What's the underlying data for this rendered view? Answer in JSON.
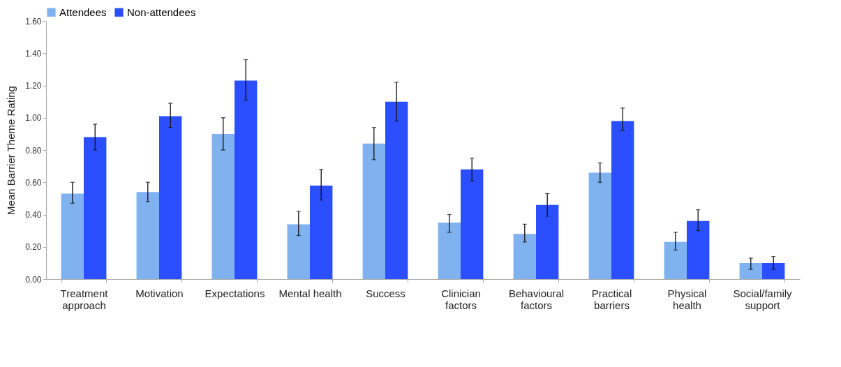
{
  "chart_data": {
    "type": "bar",
    "ylabel": "Mean Barrier Theme Rating",
    "categories": [
      "Treatment approach",
      "Motivation",
      "Expectations",
      "Mental health",
      "Success",
      "Clinician factors",
      "Behavioural factors",
      "Practical barriers",
      "Physical health",
      "Social/family support"
    ],
    "series": [
      {
        "name": "Attendees",
        "color": "#7fb2ee",
        "values": [
          0.53,
          0.54,
          0.9,
          0.34,
          0.84,
          0.35,
          0.28,
          0.66,
          0.23,
          0.1
        ],
        "errors": [
          [
            0.47,
            0.6
          ],
          [
            0.48,
            0.6
          ],
          [
            0.8,
            1.0
          ],
          [
            0.27,
            0.42
          ],
          [
            0.74,
            0.94
          ],
          [
            0.29,
            0.4
          ],
          [
            0.23,
            0.34
          ],
          [
            0.6,
            0.72
          ],
          [
            0.18,
            0.29
          ],
          [
            0.06,
            0.13
          ]
        ]
      },
      {
        "name": "Non-attendees",
        "color": "#2b4fff",
        "values": [
          0.88,
          1.01,
          1.23,
          0.58,
          1.1,
          0.68,
          0.46,
          0.98,
          0.36,
          0.1
        ],
        "errors": [
          [
            0.8,
            0.96
          ],
          [
            0.94,
            1.09
          ],
          [
            1.11,
            1.36
          ],
          [
            0.49,
            0.68
          ],
          [
            0.98,
            1.22
          ],
          [
            0.61,
            0.75
          ],
          [
            0.39,
            0.53
          ],
          [
            0.92,
            1.06
          ],
          [
            0.3,
            0.43
          ],
          [
            0.06,
            0.14
          ]
        ]
      }
    ],
    "ylim": [
      0,
      1.6
    ],
    "yticks": [
      {
        "value": 0,
        "label": "0.00"
      },
      {
        "value": 0.2,
        "label": "0.20"
      },
      {
        "value": 0.4,
        "label": "0.40"
      },
      {
        "value": 0.6,
        "label": "0.60"
      },
      {
        "value": 0.8,
        "label": "0.80"
      },
      {
        "value": 1.0,
        "label": "1.00"
      },
      {
        "value": 1.2,
        "label": "1.20"
      },
      {
        "value": 1.4,
        "label": "1.40"
      },
      {
        "value": 1.6,
        "label": "1.60"
      }
    ],
    "legend": "top",
    "grid": false
  }
}
